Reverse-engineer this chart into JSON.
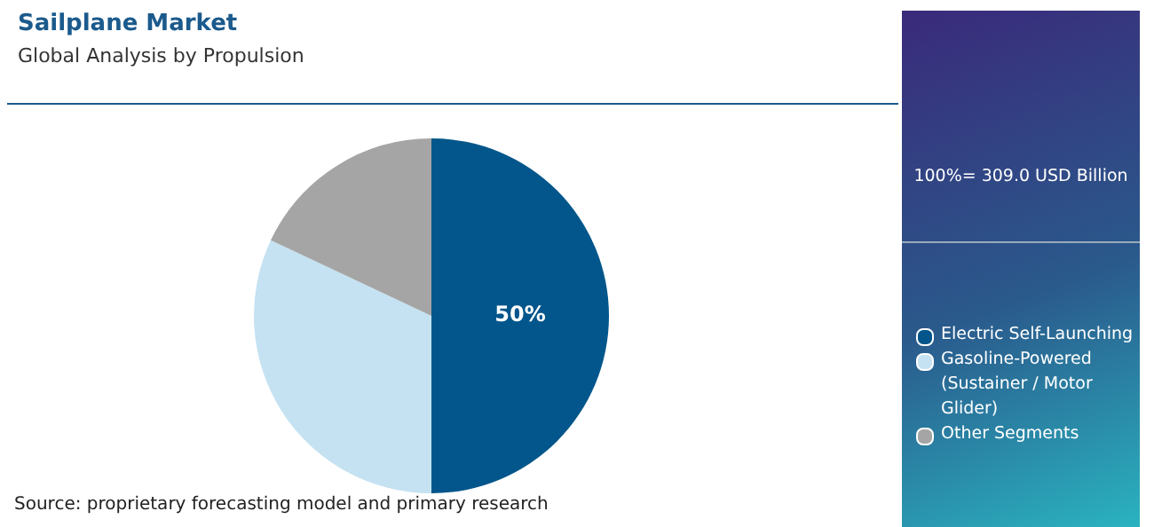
{
  "chart_data": {
    "type": "pie",
    "title": "Sailplane Market",
    "subtitle": "Global Analysis by Propulsion",
    "categories": [
      "Electric Self-Launching",
      "Gasoline-Powered (Sustainer / Motor Glider)",
      "Other Segments"
    ],
    "values": [
      50,
      32,
      18
    ],
    "colors": [
      "#02568b",
      "#c5e2f2",
      "#a5a5a5"
    ],
    "value_labels": [
      "50%",
      null,
      null
    ],
    "legend": "right",
    "annotations": [
      "100%= 309.0 USD Billion",
      "Source: proprietary forecasting model and primary research"
    ]
  }
}
